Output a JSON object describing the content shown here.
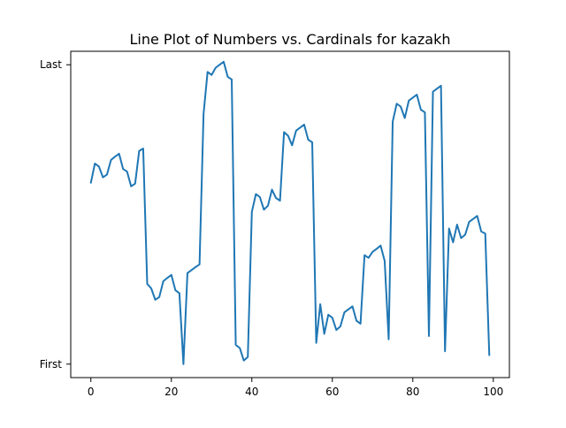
{
  "chart_data": {
    "type": "line",
    "title": "Line Plot of Numbers vs. Cardinals for kazakh",
    "xlabel": "",
    "ylabel": "",
    "xlim": [
      -5,
      104
    ],
    "ylim": [
      -0.045,
      1.045
    ],
    "x_ticks": [
      0,
      20,
      40,
      60,
      80,
      100
    ],
    "y_ticks": [
      {
        "value": 0,
        "label": "First"
      },
      {
        "value": 1,
        "label": "Last"
      }
    ],
    "grid": false,
    "color": "#1f77b4",
    "series": [
      {
        "x": [
          0,
          1,
          2,
          3,
          4,
          5,
          6,
          7,
          8,
          9,
          10,
          11,
          12,
          13,
          14,
          15,
          16,
          17,
          18,
          19,
          20,
          21,
          22,
          23,
          24,
          25,
          26,
          27,
          28,
          29,
          30,
          31,
          32,
          33,
          34,
          35,
          36,
          37,
          38,
          39,
          40,
          41,
          42,
          43,
          44,
          45,
          46,
          47,
          48,
          49,
          50,
          51,
          52,
          53,
          54,
          55,
          56,
          57,
          58,
          59,
          60,
          61,
          62,
          63,
          64,
          65,
          66,
          67,
          68,
          69,
          70,
          71,
          72,
          73,
          74,
          75,
          76,
          77,
          78,
          79,
          80,
          81,
          82,
          83,
          84,
          85,
          86,
          87,
          88,
          89,
          90,
          91,
          92,
          93,
          94,
          95,
          96,
          97,
          98,
          99
        ],
        "values": [
          0.606,
          0.67,
          0.66,
          0.624,
          0.633,
          0.682,
          0.693,
          0.703,
          0.652,
          0.643,
          0.594,
          0.603,
          0.712,
          0.72,
          0.268,
          0.253,
          0.215,
          0.224,
          0.277,
          0.288,
          0.298,
          0.247,
          0.237,
          0.0,
          0.304,
          0.314,
          0.324,
          0.333,
          0.836,
          0.976,
          0.966,
          0.99,
          1.0,
          1.01,
          0.96,
          0.951,
          0.064,
          0.054,
          0.012,
          0.024,
          0.508,
          0.568,
          0.558,
          0.516,
          0.529,
          0.583,
          0.555,
          0.546,
          0.775,
          0.763,
          0.731,
          0.78,
          0.79,
          0.8,
          0.75,
          0.741,
          0.071,
          0.2,
          0.101,
          0.165,
          0.155,
          0.114,
          0.126,
          0.173,
          0.183,
          0.193,
          0.145,
          0.135,
          0.364,
          0.355,
          0.375,
          0.385,
          0.396,
          0.345,
          0.083,
          0.81,
          0.87,
          0.86,
          0.822,
          0.88,
          0.89,
          0.9,
          0.85,
          0.841,
          0.094,
          0.91,
          0.92,
          0.93,
          0.043,
          0.453,
          0.407,
          0.466,
          0.421,
          0.432,
          0.475,
          0.485,
          0.495,
          0.443,
          0.436,
          0.03
        ]
      }
    ]
  }
}
